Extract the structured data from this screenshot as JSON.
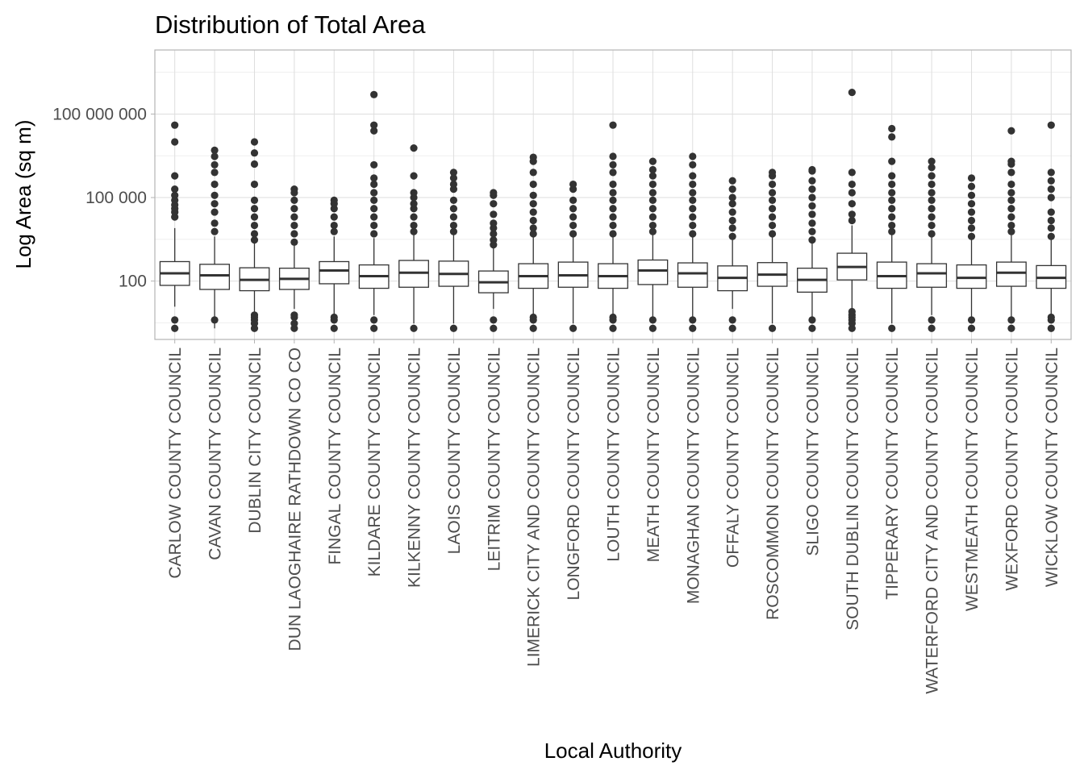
{
  "chart_data": {
    "type": "boxplot",
    "title": "Distribution of Total Area",
    "xlabel": "Local Authority",
    "ylabel": "Log Area (sq m)",
    "yscale": "log10",
    "ylim": [
      0.8,
      20000000000
    ],
    "yticks": [
      100,
      100000,
      100000000
    ],
    "ytick_labels": [
      "100",
      "100 000",
      "100 000 000"
    ],
    "grid": true,
    "colors": {
      "box_stroke": "#333333",
      "box_fill": "#ffffff",
      "outlier": "#333333",
      "grid_major": "#dedede",
      "grid_minor": "#efefef",
      "panel_border": "#b3b3b3"
    },
    "categories": [
      "CARLOW COUNTY COUNCIL",
      "CAVAN COUNTY COUNCIL",
      "DUBLIN CITY COUNCIL",
      "DUN LAOGHAIRE RATHDOWN CO CO",
      "FINGAL COUNTY COUNCIL",
      "KILDARE COUNTY COUNCIL",
      "KILKENNY COUNTY COUNCIL",
      "LAOIS COUNTY COUNCIL",
      "LEITRIM COUNTY COUNCIL",
      "LIMERICK CITY AND COUNTY COUNCIL",
      "LONGFORD COUNTY COUNCIL",
      "LOUTH COUNTY COUNCIL",
      "MEATH COUNTY COUNCIL",
      "MONAGHAN COUNTY COUNCIL",
      "OFFALY COUNTY COUNCIL",
      "ROSCOMMON COUNTY COUNCIL",
      "SLIGO COUNTY COUNCIL",
      "SOUTH DUBLIN COUNTY COUNCIL",
      "TIPPERARY COUNTY COUNCIL",
      "WATERFORD CITY AND COUNTY COUNCIL",
      "WESTMEATH COUNTY COUNCIL",
      "WEXFORD COUNTY COUNCIL",
      "WICKLOW COUNTY COUNCIL"
    ],
    "boxes": [
      {
        "q1": 70,
        "median": 190,
        "q3": 500,
        "whisker_low": 12,
        "whisker_high": 8000,
        "outliers": [
          2,
          4,
          20000,
          30000,
          40000,
          55000,
          80000,
          120000,
          200000,
          600000,
          10000000,
          40000000
        ]
      },
      {
        "q1": 50,
        "median": 160,
        "q3": 400,
        "whisker_low": 2,
        "whisker_high": 4000,
        "outliers": [
          4,
          6000,
          12000,
          30000,
          60000,
          120000,
          300000,
          800000,
          1500000,
          3000000,
          5000000
        ]
      },
      {
        "q1": 45,
        "median": 110,
        "q3": 300,
        "whisker_low": 8,
        "whisker_high": 2500,
        "outliers": [
          2,
          3,
          4,
          5,
          6,
          3000,
          5000,
          10000,
          20000,
          40000,
          80000,
          300000,
          1600000,
          4000000,
          10000000
        ]
      },
      {
        "q1": 50,
        "median": 120,
        "q3": 290,
        "whisker_low": 10,
        "whisker_high": 2000,
        "outliers": [
          2,
          3,
          5,
          6,
          2500,
          5000,
          10000,
          20000,
          40000,
          80000,
          150000,
          200000
        ]
      },
      {
        "q1": 80,
        "median": 240,
        "q3": 500,
        "whisker_low": 6,
        "whisker_high": 4000,
        "outliers": [
          2,
          4,
          5,
          6000,
          10000,
          20000,
          40000,
          60000,
          80000
        ]
      },
      {
        "q1": 55,
        "median": 150,
        "q3": 380,
        "whisker_low": 6,
        "whisker_high": 3500,
        "outliers": [
          2,
          4,
          5000,
          10000,
          20000,
          40000,
          80000,
          150000,
          300000,
          500000,
          1500000,
          25000000,
          40000000,
          500000000
        ]
      },
      {
        "q1": 60,
        "median": 200,
        "q3": 550,
        "whisker_low": 3,
        "whisker_high": 5000,
        "outliers": [
          2,
          6000,
          10000,
          20000,
          40000,
          60000,
          100000,
          150000,
          600000,
          6000000
        ]
      },
      {
        "q1": 65,
        "median": 180,
        "q3": 520,
        "whisker_low": 3,
        "whisker_high": 5000,
        "outliers": [
          2,
          6000,
          10000,
          20000,
          40000,
          80000,
          200000,
          300000,
          500000,
          800000
        ]
      },
      {
        "q1": 38,
        "median": 90,
        "q3": 230,
        "whisker_low": 10,
        "whisker_high": 1500,
        "outliers": [
          2,
          4,
          2000,
          3000,
          5000,
          8000,
          12000,
          25000,
          60000,
          120000,
          150000
        ]
      },
      {
        "q1": 55,
        "median": 150,
        "q3": 420,
        "whisker_low": 3,
        "whisker_high": 4000,
        "outliers": [
          2,
          4,
          5,
          5000,
          8000,
          15000,
          30000,
          60000,
          120000,
          300000,
          800000,
          2000000,
          2800000
        ]
      },
      {
        "q1": 60,
        "median": 160,
        "q3": 480,
        "whisker_low": 3,
        "whisker_high": 4000,
        "outliers": [
          2,
          5000,
          10000,
          20000,
          40000,
          80000,
          200000,
          300000
        ]
      },
      {
        "q1": 55,
        "median": 150,
        "q3": 420,
        "whisker_low": 3,
        "whisker_high": 4500,
        "outliers": [
          2,
          4,
          5,
          5000,
          10000,
          20000,
          40000,
          80000,
          150000,
          300000,
          800000,
          1500000,
          3000000,
          40000000
        ]
      },
      {
        "q1": 75,
        "median": 240,
        "q3": 570,
        "whisker_low": 3,
        "whisker_high": 5000,
        "outliers": [
          2,
          4,
          6000,
          10000,
          20000,
          40000,
          80000,
          150000,
          300000,
          600000,
          1000000,
          2000000
        ]
      },
      {
        "q1": 60,
        "median": 190,
        "q3": 450,
        "whisker_low": 3,
        "whisker_high": 4000,
        "outliers": [
          2,
          4,
          5000,
          10000,
          20000,
          40000,
          80000,
          150000,
          300000,
          600000,
          1500000,
          3000000
        ]
      },
      {
        "q1": 45,
        "median": 130,
        "q3": 350,
        "whisker_low": 10,
        "whisker_high": 3000,
        "outliers": [
          2,
          4,
          4000,
          8000,
          15000,
          30000,
          60000,
          100000,
          200000,
          400000
        ]
      },
      {
        "q1": 65,
        "median": 170,
        "q3": 460,
        "whisker_low": 3,
        "whisker_high": 4000,
        "outliers": [
          2,
          5000,
          10000,
          20000,
          40000,
          80000,
          150000,
          300000,
          600000,
          800000
        ]
      },
      {
        "q1": 40,
        "median": 110,
        "q3": 290,
        "whisker_low": 5,
        "whisker_high": 2500,
        "outliers": [
          2,
          4,
          3000,
          6000,
          12000,
          25000,
          50000,
          100000,
          200000,
          400000,
          900000,
          1000000
        ]
      },
      {
        "q1": 110,
        "median": 320,
        "q3": 1000,
        "whisker_low": 10,
        "whisker_high": 10000,
        "outliers": [
          2,
          3,
          4,
          5,
          6,
          8,
          15000,
          25000,
          60000,
          150000,
          300000,
          800000,
          600000000
        ]
      },
      {
        "q1": 55,
        "median": 150,
        "q3": 480,
        "whisker_low": 3,
        "whisker_high": 5000,
        "outliers": [
          2,
          6000,
          10000,
          20000,
          40000,
          80000,
          150000,
          300000,
          600000,
          2000000,
          15000000,
          30000000
        ]
      },
      {
        "q1": 60,
        "median": 190,
        "q3": 420,
        "whisker_low": 6,
        "whisker_high": 4000,
        "outliers": [
          2,
          4,
          5000,
          10000,
          20000,
          40000,
          80000,
          150000,
          300000,
          600000,
          1200000,
          2000000
        ]
      },
      {
        "q1": 55,
        "median": 130,
        "q3": 380,
        "whisker_low": 3,
        "whisker_high": 3500,
        "outliers": [
          2,
          4,
          4000,
          8000,
          15000,
          30000,
          60000,
          120000,
          250000,
          500000
        ]
      },
      {
        "q1": 65,
        "median": 200,
        "q3": 480,
        "whisker_low": 3,
        "whisker_high": 4500,
        "outliers": [
          2,
          4,
          6000,
          10000,
          20000,
          40000,
          80000,
          150000,
          300000,
          800000,
          1600000,
          2000000,
          25000000
        ]
      },
      {
        "q1": 55,
        "median": 130,
        "q3": 360,
        "whisker_low": 6,
        "whisker_high": 3000,
        "outliers": [
          2,
          4,
          5,
          4000,
          8000,
          15000,
          30000,
          100000,
          200000,
          400000,
          800000,
          40000000
        ]
      }
    ]
  }
}
